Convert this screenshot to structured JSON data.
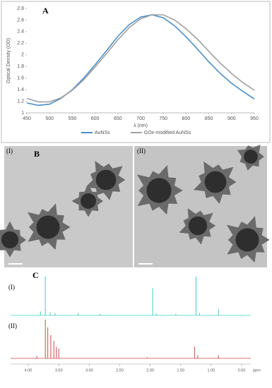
{
  "chart_data": [
    {
      "type": "line",
      "title": "A",
      "x_label": "λ (nm)",
      "y_label": "Optical Density (OD)",
      "x": [
        450,
        475,
        500,
        525,
        550,
        575,
        600,
        625,
        650,
        675,
        700,
        725,
        750,
        775,
        800,
        825,
        850,
        875,
        900,
        925,
        950
      ],
      "xlim": [
        450,
        950
      ],
      "xticks": [
        450,
        500,
        550,
        600,
        650,
        700,
        750,
        800,
        850,
        900,
        950
      ],
      "ylim": [
        1,
        2.8
      ],
      "yticks": [
        1,
        1.2,
        1.4,
        1.6,
        1.8,
        2,
        2.2,
        2.4,
        2.6,
        2.8
      ],
      "grid": false,
      "legend": "bottom",
      "series": [
        {
          "name": "AuNSs",
          "color": "#4a8fc9",
          "values": [
            1.17,
            1.13,
            1.15,
            1.25,
            1.4,
            1.6,
            1.83,
            2.07,
            2.32,
            2.52,
            2.65,
            2.69,
            2.64,
            2.5,
            2.31,
            2.1,
            1.88,
            1.68,
            1.51,
            1.37,
            1.24
          ]
        },
        {
          "name": "GOx-modified AuNSs",
          "color": "#a0a0a0",
          "values": [
            1.25,
            1.19,
            1.19,
            1.26,
            1.39,
            1.57,
            1.79,
            2.02,
            2.26,
            2.47,
            2.62,
            2.69,
            2.69,
            2.6,
            2.45,
            2.27,
            2.06,
            1.86,
            1.68,
            1.52,
            1.39
          ]
        }
      ]
    },
    {
      "type": "spectrum",
      "title": "C",
      "x_label": "ppm",
      "xlim": [
        4.29,
        0.35
      ],
      "xticks": [
        {
          "value": 4,
          "label": "4.00"
        },
        {
          "value": 3.5,
          "label": "3.50"
        },
        {
          "value": 3,
          "label": "3.00"
        },
        {
          "value": 2.5,
          "label": "2.50"
        },
        {
          "value": 2,
          "label": "2.00"
        },
        {
          "value": 1.5,
          "label": "1.50"
        },
        {
          "value": 1,
          "label": "1.00"
        },
        {
          "value": 0.5,
          "label": "0.50"
        }
      ],
      "series": [
        {
          "name": "(I)",
          "color": "#3fd0c6",
          "x": [
            3.8,
            3.72,
            3.64,
            3.56,
            3.18,
            2.82,
            1.96,
            1.9,
            1.58,
            1.25,
            1.19,
            0.88
          ],
          "values": [
            10,
            100,
            8,
            5,
            6,
            4,
            70,
            5,
            4,
            100,
            6,
            16
          ]
        },
        {
          "name": "(II)",
          "color": "#d04848",
          "x": [
            3.86,
            3.72,
            3.68,
            3.63,
            3.58,
            3.54,
            3.5,
            2.05,
            1.27,
            1.22,
            0.88
          ],
          "values": [
            6,
            100,
            80,
            60,
            45,
            30,
            25,
            3,
            30,
            8,
            8
          ]
        }
      ]
    }
  ],
  "images": {
    "title": "B",
    "labels": [
      "(I)",
      "(II)"
    ]
  }
}
